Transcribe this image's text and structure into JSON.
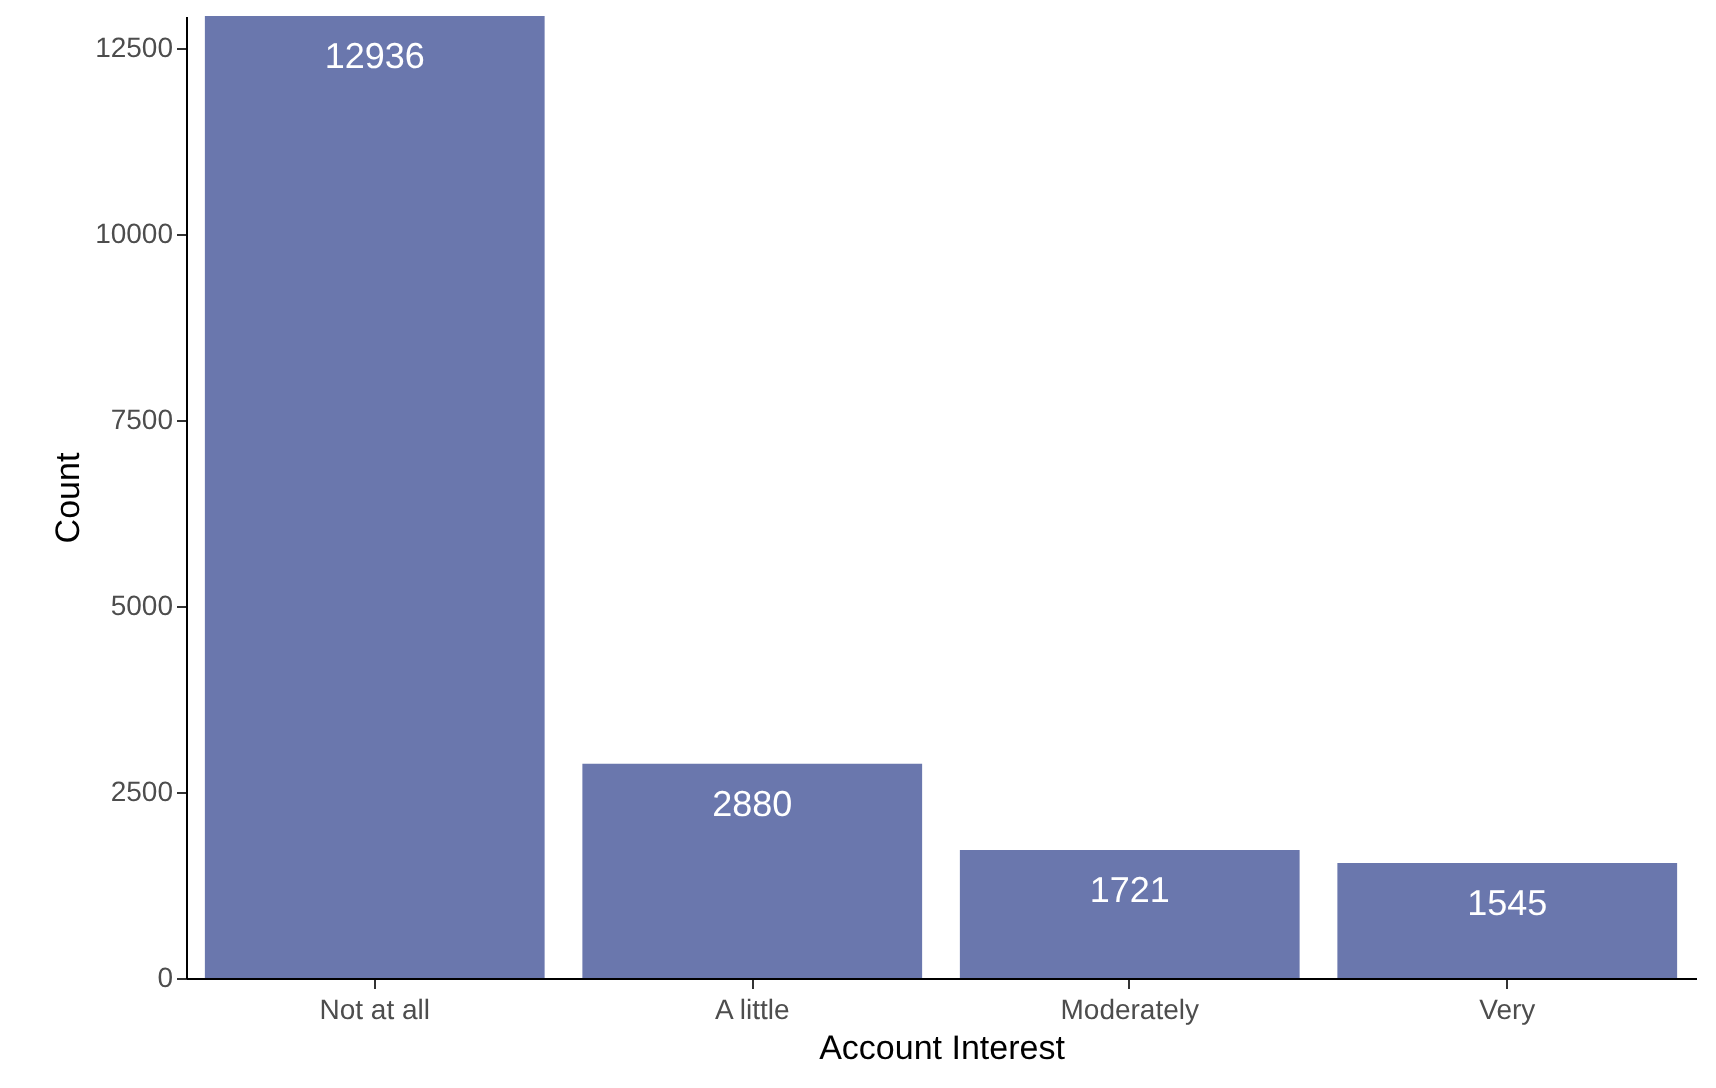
{
  "chart_data": {
    "type": "bar",
    "xlabel": "Account Interest",
    "ylabel": "Count",
    "categories": [
      "Not at all",
      "A little",
      "Moderately",
      "Very"
    ],
    "values": [
      12936,
      2880,
      1721,
      1545
    ],
    "color": "#6a77ad",
    "ylim": [
      0,
      12936
    ],
    "yticks": [
      0,
      2500,
      5000,
      7500,
      10000,
      12500
    ],
    "grid": false,
    "data_labels": true
  }
}
